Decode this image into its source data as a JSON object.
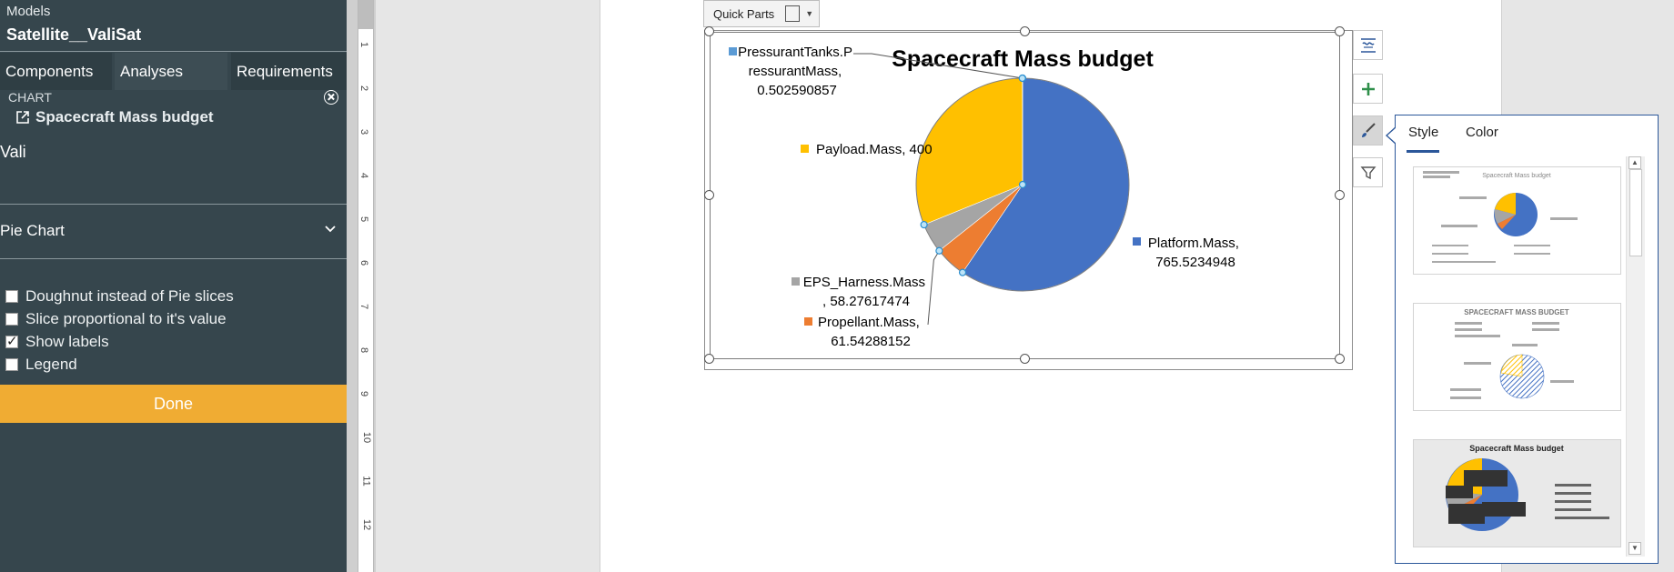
{
  "left_panel": {
    "header_label": "Models",
    "model_name": "Satellite__ValiSat",
    "tabs": [
      {
        "label": "Components"
      },
      {
        "label": "Analyses"
      },
      {
        "label": "Requirements"
      }
    ],
    "section_label": "CHART",
    "chart_name": "Spacecraft Mass budget",
    "partial_text": "Vali",
    "chart_type": "Pie Chart",
    "options": [
      {
        "label": "Doughnut instead of Pie slices",
        "checked": false
      },
      {
        "label": "Slice proportional to it's value",
        "checked": false
      },
      {
        "label": "Show labels",
        "checked": true
      },
      {
        "label": "Legend",
        "checked": false
      }
    ],
    "done_label": "Done",
    "colors": {
      "bg": "#36464d",
      "done": "#f0ac33"
    }
  },
  "ruler": {
    "labels": [
      "1",
      "2",
      "3",
      "4",
      "5",
      "6",
      "7",
      "8",
      "9",
      "10",
      "11",
      "12"
    ]
  },
  "quick_parts": {
    "label": "Quick Parts"
  },
  "chart_data": {
    "type": "pie",
    "title": "Spacecraft Mass budget",
    "slices": [
      {
        "label": "Platform.Mass",
        "value": 765.5234948,
        "value_text": "765.5234948",
        "color": "#4472c4"
      },
      {
        "label": "Propellant.Mass",
        "value": 61.54288152,
        "value_text": "61.54288152",
        "color": "#ed7d31"
      },
      {
        "label": "EPS_Harness.Mass",
        "value": 58.27617474,
        "value_text": "58.27617474",
        "color": "#a5a5a5"
      },
      {
        "label": "Payload.Mass",
        "value": 400,
        "value_text": "400",
        "color": "#ffc000"
      },
      {
        "label": "PressurantTanks.PressurantMass",
        "value": 0.502590857,
        "value_text": "0.502590857",
        "color": "#5b9bd5"
      }
    ],
    "label_lines": {
      "platform": [
        "Platform.Mass,",
        "765.5234948"
      ],
      "propellant": [
        "Propellant.Mass,",
        "61.54288152"
      ],
      "eps": [
        "EPS_Harness.Mass",
        ", 58.27617474"
      ],
      "payload": [
        "Payload.Mass, 400"
      ],
      "pressurant": [
        "PressurantTanks.P",
        "ressurantMass,",
        "0.502590857"
      ]
    },
    "legend": false
  },
  "style_panel": {
    "tabs": [
      {
        "label": "Style"
      },
      {
        "label": "Color"
      }
    ],
    "thumbnails": [
      {
        "title": "Spacecraft Mass budget"
      },
      {
        "title": "SPACECRAFT MASS BUDGET"
      },
      {
        "title": "Spacecraft Mass budget"
      }
    ]
  }
}
